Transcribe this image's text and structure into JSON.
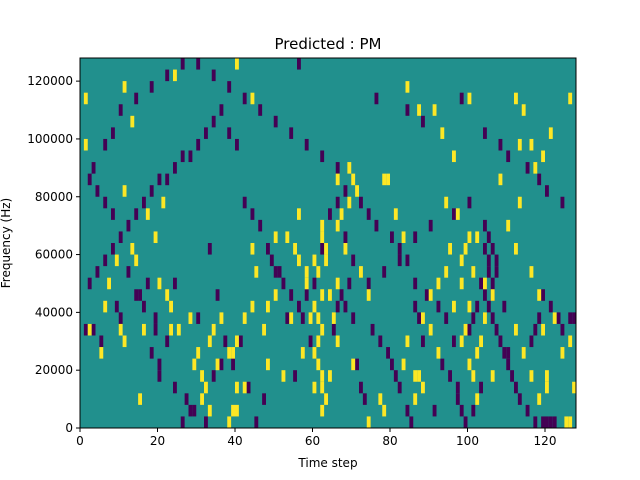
{
  "chart_data": {
    "type": "heatmap",
    "title": "Predicted : PM",
    "xlabel": "Time step",
    "ylabel": "Frequency (Hz)",
    "xlim": [
      0,
      128
    ],
    "ylim": [
      0,
      128000
    ],
    "xticks": [
      0,
      20,
      40,
      60,
      80,
      100,
      120
    ],
    "yticks": [
      0,
      20000,
      40000,
      60000,
      80000,
      100000,
      120000
    ],
    "background_level": 0,
    "levels": [
      {
        "value": -1,
        "color": "#440154"
      },
      {
        "value": 0,
        "color": "#21908d"
      },
      {
        "value": 1,
        "color": "#fde725"
      }
    ],
    "cell_width_steps": 1,
    "cell_height_hz": 4000,
    "cells_high": [
      [
        1,
        112000
      ],
      [
        11,
        116000
      ],
      [
        13,
        104000
      ],
      [
        1,
        96000
      ],
      [
        11,
        80000
      ],
      [
        17,
        72000
      ],
      [
        14,
        56000
      ],
      [
        9,
        56000
      ],
      [
        7,
        48000
      ],
      [
        2,
        32000
      ],
      [
        5,
        24000
      ],
      [
        11,
        28000
      ],
      [
        15,
        8000
      ],
      [
        16,
        32000
      ],
      [
        19,
        64000
      ],
      [
        21,
        76000
      ],
      [
        23,
        32000
      ],
      [
        28,
        36000
      ],
      [
        30,
        24000
      ],
      [
        31,
        16000
      ],
      [
        32,
        12000
      ],
      [
        33,
        28000
      ],
      [
        34,
        32000
      ],
      [
        35,
        20000
      ],
      [
        39,
        24000
      ],
      [
        40,
        12000
      ],
      [
        42,
        12000
      ],
      [
        44,
        60000
      ],
      [
        45,
        52000
      ],
      [
        48,
        40000
      ],
      [
        50,
        44000
      ],
      [
        52,
        16000
      ],
      [
        54,
        36000
      ],
      [
        57,
        24000
      ],
      [
        58,
        48000
      ],
      [
        60,
        12000
      ],
      [
        61,
        28000
      ],
      [
        62,
        12000
      ],
      [
        64,
        16000
      ],
      [
        66,
        48000
      ],
      [
        66,
        84000
      ],
      [
        69,
        76000
      ],
      [
        72,
        52000
      ],
      [
        74,
        44000
      ],
      [
        78,
        84000
      ],
      [
        79,
        84000
      ],
      [
        81,
        72000
      ],
      [
        83,
        64000
      ],
      [
        84,
        28000
      ],
      [
        86,
        16000
      ],
      [
        88,
        36000
      ],
      [
        90,
        44000
      ],
      [
        92,
        48000
      ],
      [
        94,
        52000
      ],
      [
        96,
        40000
      ],
      [
        98,
        48000
      ],
      [
        100,
        40000
      ],
      [
        102,
        8000
      ],
      [
        104,
        36000
      ],
      [
        106,
        16000
      ],
      [
        112,
        32000
      ],
      [
        114,
        24000
      ],
      [
        116,
        16000
      ],
      [
        118,
        8000
      ],
      [
        120,
        12000
      ],
      [
        122,
        36000
      ],
      [
        124,
        24000
      ],
      [
        126,
        28000
      ],
      [
        127,
        12000
      ],
      [
        56,
        72000
      ],
      [
        24,
        120000
      ],
      [
        40,
        124000
      ],
      [
        44,
        112000
      ],
      [
        84,
        116000
      ],
      [
        100,
        112000
      ],
      [
        112,
        112000
      ],
      [
        126,
        112000
      ],
      [
        60,
        56000
      ],
      [
        62,
        64000
      ],
      [
        63,
        60000
      ],
      [
        61,
        52000
      ],
      [
        62,
        44000
      ],
      [
        60,
        40000
      ],
      [
        61,
        36000
      ],
      [
        62,
        32000
      ],
      [
        61,
        20000
      ],
      [
        62,
        16000
      ],
      [
        63,
        8000
      ],
      [
        62,
        4000
      ],
      [
        39,
        4000
      ],
      [
        38,
        0
      ],
      [
        40,
        4000
      ],
      [
        98,
        28000
      ],
      [
        99,
        32000
      ],
      [
        100,
        20000
      ],
      [
        101,
        16000
      ],
      [
        102,
        24000
      ],
      [
        103,
        28000
      ],
      [
        98,
        56000
      ],
      [
        99,
        60000
      ],
      [
        100,
        64000
      ],
      [
        101,
        52000
      ],
      [
        95,
        60000
      ],
      [
        94,
        76000
      ],
      [
        97,
        72000
      ],
      [
        108,
        84000
      ],
      [
        113,
        76000
      ],
      [
        116,
        96000
      ],
      [
        117,
        88000
      ],
      [
        119,
        92000
      ],
      [
        121,
        100000
      ],
      [
        113,
        96000
      ],
      [
        114,
        108000
      ],
      [
        96,
        92000
      ],
      [
        93,
        100000
      ],
      [
        91,
        108000
      ],
      [
        87,
        108000
      ],
      [
        69,
        88000
      ],
      [
        70,
        84000
      ],
      [
        68,
        60000
      ],
      [
        66,
        68000
      ],
      [
        67,
        72000
      ],
      [
        71,
        80000
      ],
      [
        125,
        0
      ],
      [
        126,
        0
      ],
      [
        120,
        16000
      ],
      [
        119,
        32000
      ],
      [
        118,
        44000
      ],
      [
        116,
        52000
      ],
      [
        112,
        60000
      ],
      [
        110,
        68000
      ],
      [
        106,
        44000
      ],
      [
        104,
        48000
      ],
      [
        102,
        64000
      ],
      [
        92,
        24000
      ],
      [
        90,
        32000
      ],
      [
        88,
        12000
      ],
      [
        86,
        8000
      ],
      [
        87,
        16000
      ],
      [
        83,
        20000
      ],
      [
        78,
        4000
      ],
      [
        77,
        8000
      ],
      [
        74,
        0
      ],
      [
        70,
        20000
      ],
      [
        66,
        28000
      ],
      [
        65,
        36000
      ],
      [
        64,
        44000
      ],
      [
        63,
        56000
      ],
      [
        62,
        68000
      ],
      [
        60,
        24000
      ],
      [
        59,
        36000
      ],
      [
        58,
        52000
      ],
      [
        56,
        56000
      ],
      [
        55,
        60000
      ],
      [
        53,
        64000
      ],
      [
        50,
        64000
      ],
      [
        48,
        20000
      ],
      [
        47,
        32000
      ],
      [
        44,
        40000
      ],
      [
        42,
        36000
      ],
      [
        40,
        28000
      ],
      [
        38,
        24000
      ],
      [
        36,
        36000
      ],
      [
        33,
        4000
      ],
      [
        31,
        8000
      ],
      [
        29,
        20000
      ],
      [
        25,
        32000
      ],
      [
        23,
        40000
      ],
      [
        22,
        44000
      ],
      [
        20,
        48000
      ],
      [
        10,
        32000
      ],
      [
        6,
        40000
      ],
      [
        13,
        60000
      ]
    ],
    "cells_low": [
      [
        1,
        32000
      ],
      [
        3,
        32000
      ],
      [
        5,
        28000
      ],
      [
        9,
        40000
      ],
      [
        10,
        36000
      ],
      [
        15,
        44000
      ],
      [
        17,
        48000
      ],
      [
        19,
        36000
      ],
      [
        19,
        32000
      ],
      [
        20,
        20000
      ],
      [
        22,
        28000
      ],
      [
        24,
        48000
      ],
      [
        26,
        0
      ],
      [
        28,
        4000
      ],
      [
        30,
        36000
      ],
      [
        33,
        60000
      ],
      [
        35,
        44000
      ],
      [
        37,
        28000
      ],
      [
        39,
        20000
      ],
      [
        41,
        28000
      ],
      [
        43,
        12000
      ],
      [
        45,
        0
      ],
      [
        47,
        8000
      ],
      [
        49,
        56000
      ],
      [
        51,
        52000
      ],
      [
        53,
        36000
      ],
      [
        55,
        16000
      ],
      [
        57,
        36000
      ],
      [
        59,
        28000
      ],
      [
        65,
        32000
      ],
      [
        66,
        40000
      ],
      [
        67,
        44000
      ],
      [
        68,
        40000
      ],
      [
        69,
        48000
      ],
      [
        70,
        36000
      ],
      [
        71,
        20000
      ],
      [
        72,
        12000
      ],
      [
        73,
        8000
      ],
      [
        75,
        32000
      ],
      [
        77,
        28000
      ],
      [
        79,
        24000
      ],
      [
        80,
        20000
      ],
      [
        81,
        16000
      ],
      [
        82,
        12000
      ],
      [
        84,
        4000
      ],
      [
        85,
        0
      ],
      [
        86,
        40000
      ],
      [
        87,
        36000
      ],
      [
        88,
        28000
      ],
      [
        91,
        4000
      ],
      [
        93,
        20000
      ],
      [
        95,
        16000
      ],
      [
        97,
        8000
      ],
      [
        99,
        0
      ],
      [
        101,
        4000
      ],
      [
        103,
        12000
      ],
      [
        104,
        44000
      ],
      [
        105,
        40000
      ],
      [
        106,
        36000
      ],
      [
        107,
        32000
      ],
      [
        108,
        28000
      ],
      [
        109,
        24000
      ],
      [
        110,
        20000
      ],
      [
        111,
        16000
      ],
      [
        112,
        12000
      ],
      [
        113,
        8000
      ],
      [
        115,
        4000
      ],
      [
        117,
        0
      ],
      [
        119,
        44000
      ],
      [
        121,
        40000
      ],
      [
        123,
        36000
      ],
      [
        124,
        32000
      ],
      [
        104,
        68000
      ],
      [
        105,
        64000
      ],
      [
        106,
        60000
      ],
      [
        107,
        56000
      ],
      [
        105,
        52000
      ],
      [
        106,
        48000
      ],
      [
        107,
        52000
      ],
      [
        104,
        60000
      ],
      [
        105,
        56000
      ],
      [
        106,
        44000
      ],
      [
        119,
        0
      ],
      [
        120,
        0
      ],
      [
        121,
        0
      ],
      [
        122,
        0
      ],
      [
        127,
        36000
      ],
      [
        126,
        36000
      ],
      [
        118,
        36000
      ],
      [
        117,
        32000
      ],
      [
        116,
        28000
      ],
      [
        110,
        24000
      ],
      [
        109,
        40000
      ],
      [
        103,
        48000
      ],
      [
        102,
        40000
      ],
      [
        101,
        36000
      ],
      [
        100,
        32000
      ],
      [
        98,
        4000
      ],
      [
        97,
        12000
      ],
      [
        96,
        28000
      ],
      [
        94,
        36000
      ],
      [
        92,
        40000
      ],
      [
        89,
        44000
      ],
      [
        86,
        48000
      ],
      [
        84,
        56000
      ],
      [
        82,
        60000
      ],
      [
        80,
        64000
      ],
      [
        76,
        68000
      ],
      [
        74,
        72000
      ],
      [
        72,
        76000
      ],
      [
        68,
        80000
      ],
      [
        66,
        76000
      ],
      [
        64,
        72000
      ],
      [
        62,
        60000
      ],
      [
        60,
        48000
      ],
      [
        58,
        44000
      ],
      [
        56,
        40000
      ],
      [
        54,
        44000
      ],
      [
        52,
        48000
      ],
      [
        50,
        52000
      ],
      [
        48,
        60000
      ],
      [
        46,
        68000
      ],
      [
        44,
        72000
      ],
      [
        42,
        76000
      ],
      [
        40,
        96000
      ],
      [
        38,
        100000
      ],
      [
        36,
        108000
      ],
      [
        34,
        104000
      ],
      [
        32,
        100000
      ],
      [
        30,
        96000
      ],
      [
        28,
        92000
      ],
      [
        26,
        92000
      ],
      [
        24,
        88000
      ],
      [
        22,
        84000
      ],
      [
        20,
        84000
      ],
      [
        18,
        80000
      ],
      [
        16,
        76000
      ],
      [
        14,
        72000
      ],
      [
        12,
        68000
      ],
      [
        10,
        64000
      ],
      [
        8,
        60000
      ],
      [
        6,
        56000
      ],
      [
        4,
        52000
      ],
      [
        2,
        48000
      ],
      [
        56,
        124000
      ],
      [
        76,
        112000
      ],
      [
        84,
        108000
      ],
      [
        88,
        104000
      ],
      [
        98,
        112000
      ],
      [
        104,
        100000
      ],
      [
        108,
        96000
      ],
      [
        110,
        92000
      ],
      [
        115,
        88000
      ],
      [
        118,
        84000
      ],
      [
        120,
        80000
      ],
      [
        124,
        76000
      ],
      [
        100,
        76000
      ],
      [
        96,
        72000
      ],
      [
        90,
        68000
      ],
      [
        86,
        64000
      ],
      [
        82,
        56000
      ],
      [
        78,
        52000
      ],
      [
        74,
        48000
      ],
      [
        70,
        56000
      ],
      [
        68,
        64000
      ],
      [
        66,
        88000
      ],
      [
        62,
        92000
      ],
      [
        58,
        96000
      ],
      [
        54,
        100000
      ],
      [
        50,
        104000
      ],
      [
        46,
        108000
      ],
      [
        42,
        112000
      ],
      [
        38,
        116000
      ],
      [
        34,
        120000
      ],
      [
        30,
        124000
      ],
      [
        26,
        124000
      ],
      [
        22,
        120000
      ],
      [
        18,
        116000
      ],
      [
        14,
        112000
      ],
      [
        10,
        108000
      ],
      [
        8,
        100000
      ],
      [
        6,
        96000
      ],
      [
        3,
        88000
      ],
      [
        2,
        84000
      ],
      [
        4,
        80000
      ],
      [
        6,
        76000
      ],
      [
        8,
        72000
      ],
      [
        12,
        52000
      ],
      [
        14,
        44000
      ],
      [
        16,
        40000
      ],
      [
        18,
        24000
      ],
      [
        20,
        16000
      ],
      [
        24,
        12000
      ],
      [
        27,
        8000
      ],
      [
        29,
        4000
      ],
      [
        32,
        0
      ],
      [
        34,
        16000
      ],
      [
        36,
        20000
      ]
    ]
  }
}
